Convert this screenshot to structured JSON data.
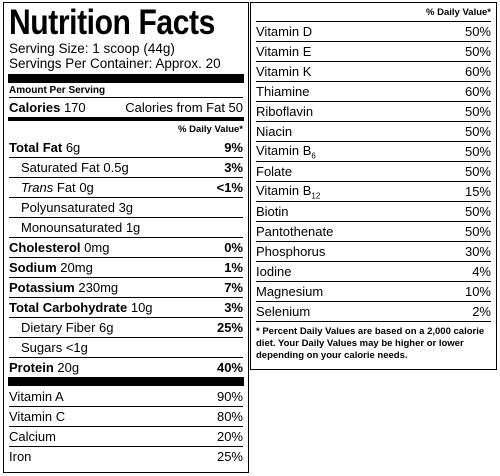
{
  "left": {
    "title": "Nutrition Facts",
    "serving_size": "Serving Size: 1 scoop (44g)",
    "servings_per_container": "Servings Per Container: Approx. 20",
    "amount_per_serving": "Amount Per Serving",
    "calories": {
      "label": "Calories",
      "value": "170",
      "from_fat": "Calories from Fat 50"
    },
    "daily_value_header": "% Daily Value*",
    "nutrients": [
      {
        "name": "Total Fat",
        "amount": "6g",
        "dv": "9%",
        "sub": [
          {
            "name": "Saturated Fat",
            "amount": "0.5g",
            "dv": "3%"
          },
          {
            "name": "Trans",
            "name_rest": "Fat",
            "amount": "0g",
            "dv": "<1%"
          },
          {
            "name": "Polyunsaturated",
            "amount": "3g"
          },
          {
            "name": "Monounsaturated",
            "amount": "1g"
          }
        ]
      },
      {
        "name": "Cholesterol",
        "amount": "0mg",
        "dv": "0%"
      },
      {
        "name": "Sodium",
        "amount": "20mg",
        "dv": "1%"
      },
      {
        "name": "Potassium",
        "amount": "230mg",
        "dv": "7%"
      },
      {
        "name": "Total Carbohydrate",
        "amount": "10g",
        "dv": "3%",
        "sub": [
          {
            "name": "Dietary Fiber",
            "amount": "6g",
            "dv": "25%"
          },
          {
            "name": "Sugars",
            "amount": "<1g"
          }
        ]
      },
      {
        "name": "Protein",
        "amount": "20g",
        "dv": "40%"
      }
    ],
    "vitamins": [
      {
        "name": "Vitamin A",
        "dv": "90%"
      },
      {
        "name": "Vitamin C",
        "dv": "80%"
      },
      {
        "name": "Calcium",
        "dv": "20%"
      },
      {
        "name": "Iron",
        "dv": "25%"
      }
    ]
  },
  "right": {
    "daily_value_header": "% Daily Value*",
    "vitamins": [
      {
        "name": "Vitamin D",
        "dv": "50%"
      },
      {
        "name": "Vitamin E",
        "dv": "50%"
      },
      {
        "name": "Vitamin K",
        "dv": "60%"
      },
      {
        "name": "Thiamine",
        "dv": "60%"
      },
      {
        "name": "Riboflavin",
        "dv": "50%"
      },
      {
        "name": "Niacin",
        "dv": "50%"
      },
      {
        "name": "Vitamin B",
        "subscript": "6",
        "dv": "50%"
      },
      {
        "name": "Folate",
        "dv": "50%"
      },
      {
        "name": "Vitamin B",
        "subscript": "12",
        "dv": "15%"
      },
      {
        "name": "Biotin",
        "dv": "50%"
      },
      {
        "name": "Pantothenate",
        "dv": "50%"
      },
      {
        "name": "Phosphorus",
        "dv": "30%"
      },
      {
        "name": "Iodine",
        "dv": "4%"
      },
      {
        "name": "Magnesium",
        "dv": "10%"
      },
      {
        "name": "Selenium",
        "dv": "2%"
      }
    ],
    "footnote": "* Percent Daily Values are based on a 2,000 calorie diet. Your Daily Values may be higher or lower depending on your calorie needs."
  }
}
